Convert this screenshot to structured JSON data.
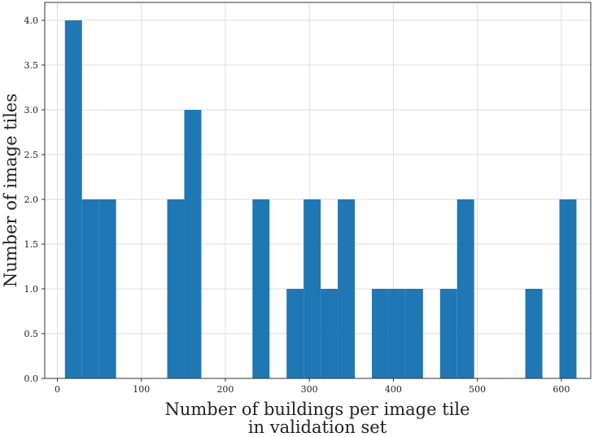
{
  "chart_data": {
    "type": "bar",
    "title": "",
    "xlabel_lines": [
      "Number of buildings per image tile",
      "in validation set"
    ],
    "ylabel": "Number of image tiles",
    "xlim": [
      -15,
      635
    ],
    "ylim": [
      0,
      4.2
    ],
    "grid": true,
    "bar_color": "#1f77b4",
    "bin_width": 20.3,
    "bins": [
      {
        "x0": 9.0,
        "count": 4
      },
      {
        "x0": 29.3,
        "count": 2
      },
      {
        "x0": 49.6,
        "count": 2
      },
      {
        "x0": 130.8,
        "count": 2
      },
      {
        "x0": 151.1,
        "count": 3
      },
      {
        "x0": 232.3,
        "count": 2
      },
      {
        "x0": 272.9,
        "count": 1
      },
      {
        "x0": 293.2,
        "count": 2
      },
      {
        "x0": 313.5,
        "count": 1
      },
      {
        "x0": 333.8,
        "count": 2
      },
      {
        "x0": 374.4,
        "count": 1
      },
      {
        "x0": 394.7,
        "count": 1
      },
      {
        "x0": 415.0,
        "count": 1
      },
      {
        "x0": 455.6,
        "count": 1
      },
      {
        "x0": 475.9,
        "count": 2
      },
      {
        "x0": 557.1,
        "count": 1
      },
      {
        "x0": 597.7,
        "count": 2
      }
    ],
    "x_ticks": [
      0,
      100,
      200,
      300,
      400,
      500,
      600
    ],
    "x_tick_labels": [
      "0",
      "100",
      "200",
      "300",
      "400",
      "500",
      "600"
    ],
    "y_ticks": [
      0,
      0.5,
      1.0,
      1.5,
      2.0,
      2.5,
      3.0,
      3.5,
      4.0
    ],
    "y_tick_labels": [
      "0.0",
      "0.5",
      "1.0",
      "1.5",
      "2.0",
      "2.5",
      "3.0",
      "3.5",
      "4.0"
    ]
  }
}
